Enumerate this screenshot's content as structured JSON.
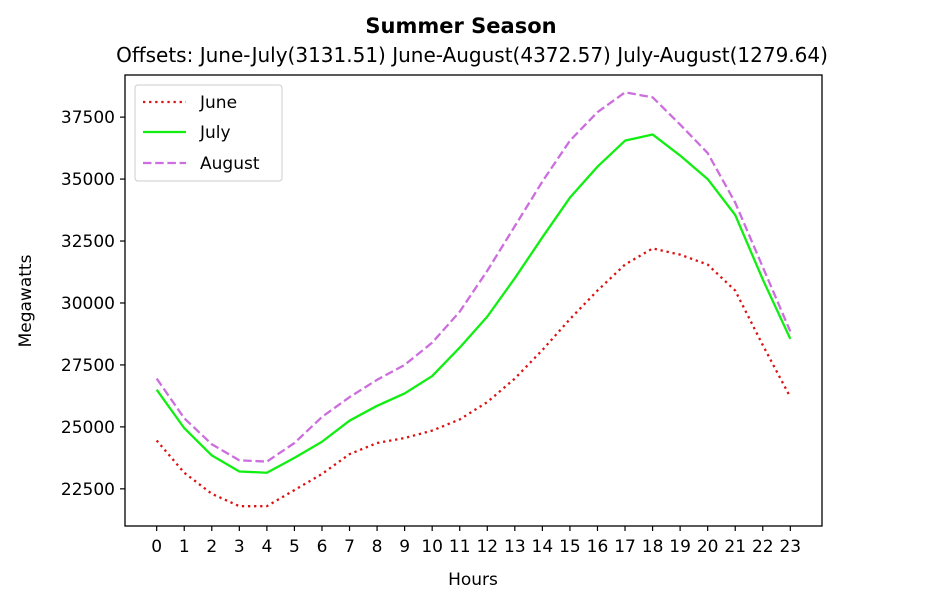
{
  "chart_data": {
    "type": "line",
    "title": "Summer Season",
    "subtitle": "Offsets: June-July(3131.51) June-August(4372.57) July-August(1279.64)",
    "xlabel": "Hours",
    "ylabel": "Megawatts",
    "x": [
      0,
      1,
      2,
      3,
      4,
      5,
      6,
      7,
      8,
      9,
      10,
      11,
      12,
      13,
      14,
      15,
      16,
      17,
      18,
      19,
      20,
      21,
      22,
      23
    ],
    "xlim": [
      -1.15,
      24.15
    ],
    "ylim": [
      21000,
      39200
    ],
    "yticks": [
      22500,
      25000,
      27500,
      30000,
      32500,
      35000,
      37500
    ],
    "grid": false,
    "legend_position": "top-left",
    "series": [
      {
        "name": "June",
        "color": "#dd1111",
        "style": "dotted",
        "values": [
          24450,
          23150,
          22300,
          21800,
          21800,
          22450,
          23100,
          23900,
          24350,
          24550,
          24850,
          25300,
          26000,
          26950,
          28100,
          29350,
          30500,
          31550,
          32200,
          31950,
          31550,
          30500,
          28300,
          26200
        ]
      },
      {
        "name": "July",
        "color": "#11ee11",
        "style": "solid",
        "values": [
          26500,
          24950,
          23850,
          23200,
          23150,
          23750,
          24400,
          25250,
          25850,
          26350,
          27050,
          28200,
          29450,
          31000,
          32650,
          34250,
          35500,
          36550,
          36800,
          35950,
          35000,
          33550,
          30950,
          28550
        ]
      },
      {
        "name": "August",
        "color": "#cc6edd",
        "style": "dashed",
        "values": [
          26950,
          25350,
          24300,
          23650,
          23600,
          24350,
          25400,
          26200,
          26900,
          27500,
          28400,
          29650,
          31300,
          33100,
          34900,
          36550,
          37700,
          38500,
          38300,
          37200,
          36050,
          34050,
          31450,
          28850
        ]
      }
    ]
  }
}
